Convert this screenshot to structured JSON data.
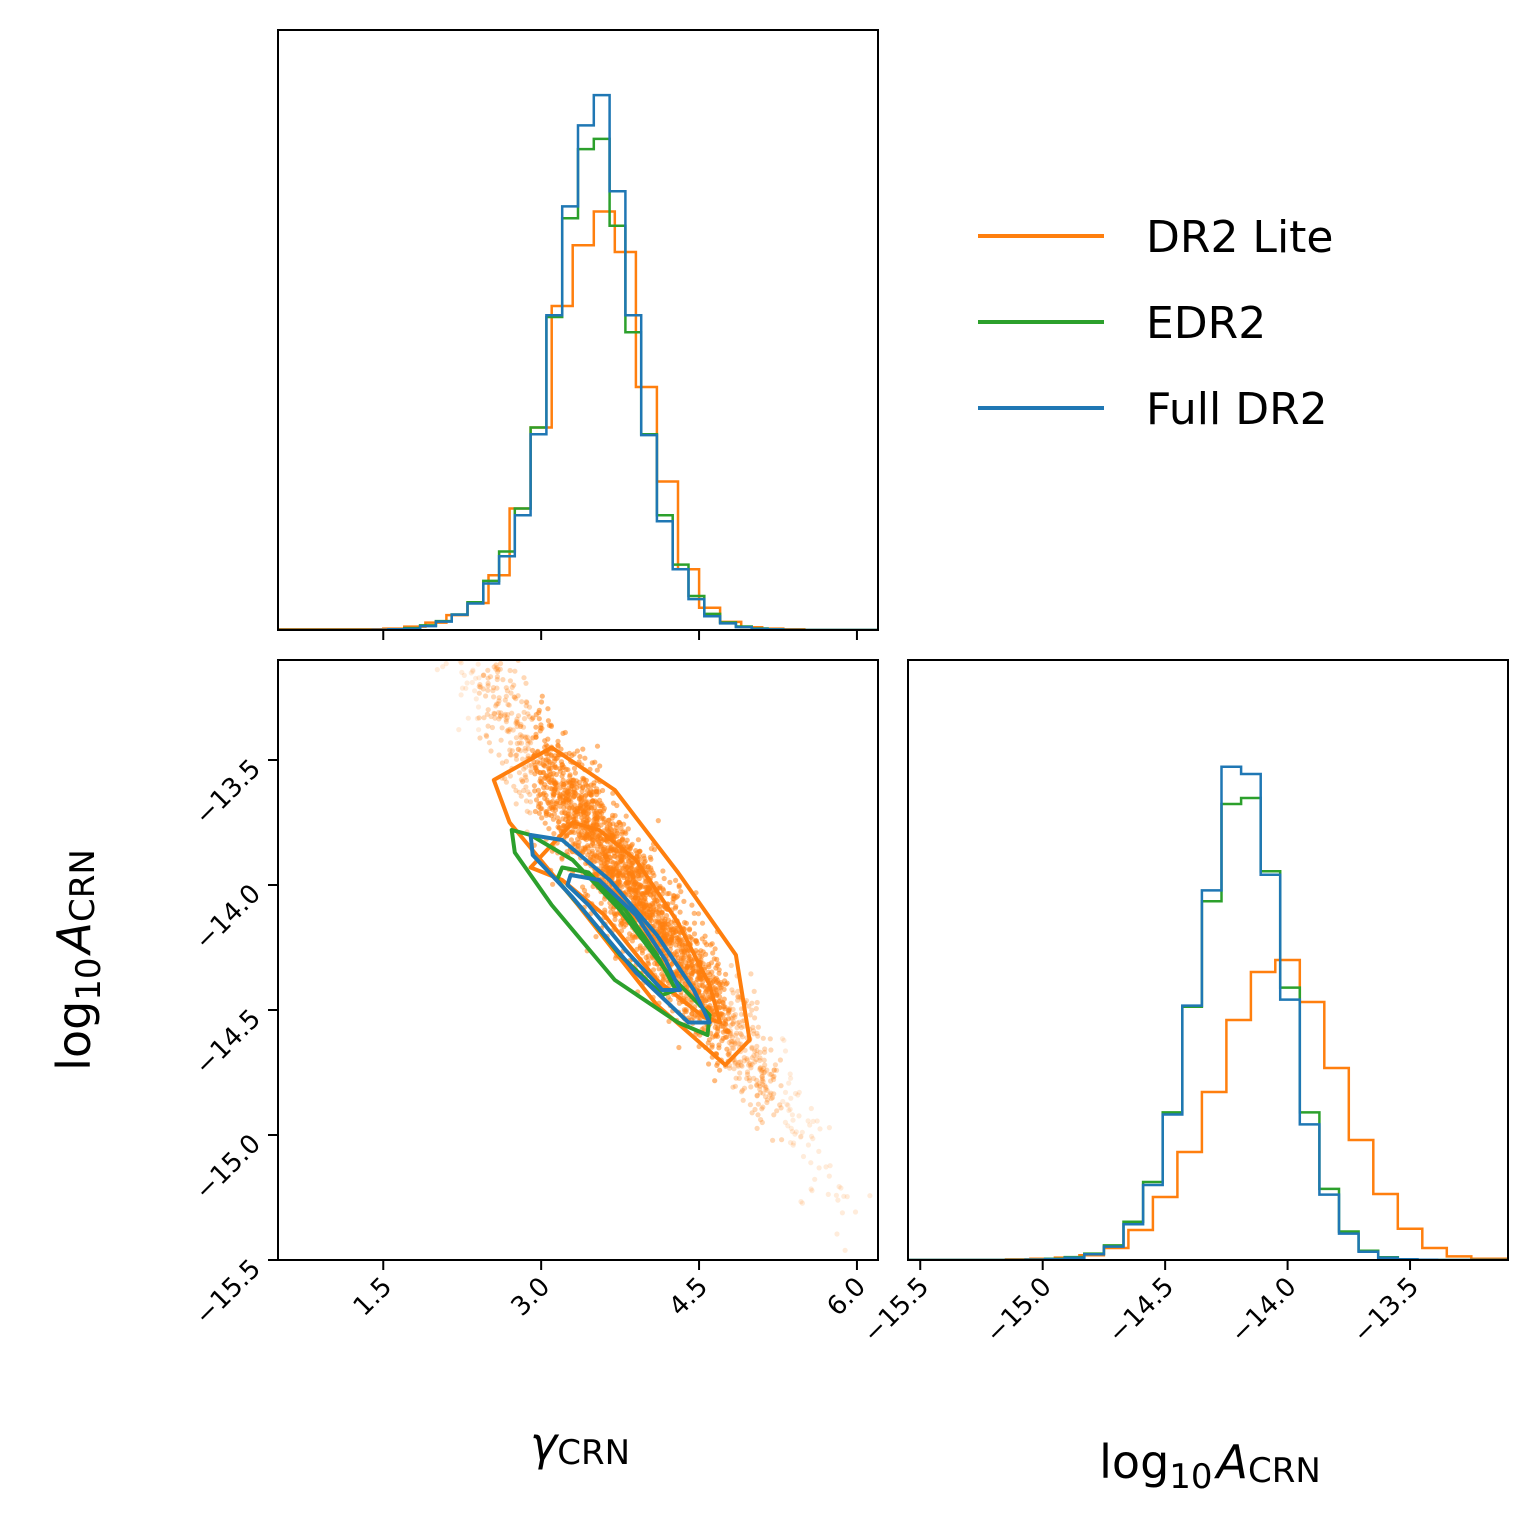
{
  "colors": {
    "dr2_lite": "#ff7f0e",
    "edr2": "#2ca02c",
    "full_dr2": "#1f77b4"
  },
  "legend": {
    "items": [
      {
        "label": "DR2 Lite",
        "color": "#ff7f0e"
      },
      {
        "label": "EDR2",
        "color": "#2ca02c"
      },
      {
        "label": "Full DR2",
        "color": "#1f77b4"
      }
    ]
  },
  "chart_data": [
    {
      "type": "histogram",
      "panel": "gamma-marginal",
      "xlim": [
        0.5,
        6.2
      ],
      "bins": [
        1.4,
        1.6,
        1.8,
        2.0,
        2.2,
        2.4,
        2.6,
        2.8,
        3.0,
        3.2,
        3.4,
        3.6,
        3.8,
        4.0,
        4.2,
        4.4,
        4.6,
        4.8,
        5.0,
        5.2,
        5.4,
        5.6,
        5.8,
        6.0
      ],
      "series": [
        {
          "name": "DR2 Lite",
          "color": "#ff7f0e",
          "bin_width": 0.2,
          "counts": [
            0.001,
            0.002,
            0.005,
            0.011,
            0.022,
            0.04,
            0.081,
            0.18,
            0.3,
            0.48,
            0.57,
            0.62,
            0.56,
            0.36,
            0.22,
            0.09,
            0.033,
            0.012,
            0.004,
            0.002,
            0.001,
            0.0,
            0.0,
            0.0
          ]
        },
        {
          "name": "EDR2",
          "color": "#2ca02c",
          "bin_width": 0.15,
          "counts": [
            0.0,
            0.001,
            0.003,
            0.009,
            0.02,
            0.044,
            0.09,
            0.16,
            0.32,
            0.55,
            0.71,
            0.73,
            0.52,
            0.31,
            0.15,
            0.065,
            0.026,
            0.009,
            0.003,
            0.001,
            0.0,
            0.0,
            0.0,
            0.0
          ]
        },
        {
          "name": "Full DR2",
          "color": "#1f77b4",
          "bin_width": 0.15,
          "counts": [
            0.0,
            0.001,
            0.002,
            0.008,
            0.02,
            0.042,
            0.085,
            0.15,
            0.31,
            0.56,
            0.74,
            0.8,
            0.56,
            0.31,
            0.14,
            0.06,
            0.022,
            0.008,
            0.002,
            0.001,
            0.0,
            0.0,
            0.0,
            0.0
          ]
        }
      ]
    },
    {
      "type": "scatter",
      "panel": "joint-2d",
      "xlim": [
        0.5,
        6.2
      ],
      "ylim": [
        -15.5,
        -13.1
      ],
      "xticks": [
        "1.5",
        "3.0",
        "4.5",
        "6.0"
      ],
      "yticks": [
        "−13.5",
        "−14.0",
        "−14.5",
        "−15.0",
        "−15.5"
      ],
      "xtick_values": [
        1.5,
        3.0,
        4.5,
        6.0
      ],
      "ytick_values": [
        -13.5,
        -14.0,
        -14.5,
        -15.0,
        -15.5
      ],
      "xlabel_main": "γ",
      "xlabel_sub": "CRN",
      "ylabel_main": "log",
      "ylabel_base": "10",
      "ylabel_var": "A",
      "ylabel_sub": "CRN",
      "scatter_series": {
        "name": "DR2 Lite",
        "color": "#ff7f0e",
        "mean": [
          3.85,
          -14.02
        ],
        "sd_x": 0.72,
        "slope": -0.58,
        "sd_resid": 0.12,
        "n_points": 2600
      },
      "contours": [
        {
          "name": "DR2 Lite",
          "color": "#ff7f0e",
          "polygons": [
            [
              [
                2.9,
                -13.93
              ],
              [
                3.3,
                -13.75
              ],
              [
                3.55,
                -13.78
              ],
              [
                3.9,
                -13.9
              ],
              [
                4.3,
                -14.15
              ],
              [
                4.6,
                -14.4
              ],
              [
                4.7,
                -14.55
              ],
              [
                4.55,
                -14.53
              ],
              [
                4.1,
                -14.38
              ],
              [
                3.6,
                -14.12
              ],
              [
                3.2,
                -13.98
              ]
            ],
            [
              [
                2.55,
                -13.58
              ],
              [
                3.1,
                -13.45
              ],
              [
                3.7,
                -13.62
              ],
              [
                4.3,
                -13.95
              ],
              [
                4.85,
                -14.28
              ],
              [
                4.98,
                -14.62
              ],
              [
                4.75,
                -14.72
              ],
              [
                4.1,
                -14.48
              ],
              [
                3.35,
                -14.08
              ],
              [
                2.7,
                -13.75
              ]
            ]
          ]
        },
        {
          "name": "EDR2",
          "color": "#2ca02c",
          "polygons": [
            [
              [
                3.2,
                -13.93
              ],
              [
                3.45,
                -13.95
              ],
              [
                3.8,
                -14.1
              ],
              [
                4.1,
                -14.28
              ],
              [
                4.28,
                -14.42
              ],
              [
                4.15,
                -14.44
              ],
              [
                3.75,
                -14.28
              ],
              [
                3.4,
                -14.1
              ],
              [
                3.15,
                -13.98
              ]
            ],
            [
              [
                2.72,
                -13.78
              ],
              [
                2.9,
                -13.8
              ],
              [
                3.3,
                -13.9
              ],
              [
                3.75,
                -14.1
              ],
              [
                4.2,
                -14.35
              ],
              [
                4.6,
                -14.52
              ],
              [
                4.58,
                -14.6
              ],
              [
                4.3,
                -14.55
              ],
              [
                3.7,
                -14.38
              ],
              [
                3.1,
                -14.08
              ],
              [
                2.75,
                -13.87
              ]
            ]
          ]
        },
        {
          "name": "Full DR2",
          "color": "#1f77b4",
          "polygons": [
            [
              [
                3.28,
                -13.96
              ],
              [
                3.55,
                -13.98
              ],
              [
                3.9,
                -14.12
              ],
              [
                4.18,
                -14.3
              ],
              [
                4.32,
                -14.42
              ],
              [
                4.15,
                -14.42
              ],
              [
                3.8,
                -14.26
              ],
              [
                3.45,
                -14.08
              ],
              [
                3.25,
                -14.0
              ]
            ],
            [
              [
                2.9,
                -13.8
              ],
              [
                3.2,
                -13.82
              ],
              [
                3.65,
                -13.98
              ],
              [
                4.1,
                -14.2
              ],
              [
                4.45,
                -14.42
              ],
              [
                4.6,
                -14.55
              ],
              [
                4.4,
                -14.55
              ],
              [
                3.9,
                -14.35
              ],
              [
                3.3,
                -14.05
              ],
              [
                2.92,
                -13.88
              ]
            ]
          ]
        }
      ]
    },
    {
      "type": "histogram",
      "panel": "logA-marginal",
      "xlim": [
        -15.55,
        -13.1
      ],
      "xticks": [
        "−15.5",
        "−15.0",
        "−14.5",
        "−14.0",
        "−13.5"
      ],
      "xtick_values": [
        -15.5,
        -15.0,
        -14.5,
        -14.0,
        -13.5
      ],
      "xlabel_main": "log",
      "xlabel_base": "10",
      "xlabel_var": "A",
      "xlabel_sub": "CRN",
      "bins": [
        -15.4,
        -15.3,
        -15.2,
        -15.1,
        -15.0,
        -14.9,
        -14.8,
        -14.7,
        -14.6,
        -14.5,
        -14.4,
        -14.3,
        -14.2,
        -14.1,
        -14.0,
        -13.9,
        -13.8,
        -13.7,
        -13.6,
        -13.5,
        -13.4,
        -13.3,
        -13.2
      ],
      "series": [
        {
          "name": "DR2 Lite",
          "color": "#ff7f0e",
          "bin_width": 0.1,
          "counts": [
            0.0,
            0.0,
            0.0,
            0.001,
            0.002,
            0.004,
            0.008,
            0.02,
            0.05,
            0.105,
            0.18,
            0.28,
            0.4,
            0.48,
            0.5,
            0.43,
            0.32,
            0.2,
            0.11,
            0.052,
            0.02,
            0.006,
            0.002
          ]
        },
        {
          "name": "EDR2",
          "color": "#2ca02c",
          "bin_width": 0.08,
          "counts": [
            0.0,
            0.0,
            0.0,
            0.0,
            0.001,
            0.003,
            0.009,
            0.026,
            0.08,
            0.18,
            0.4,
            0.62,
            0.82,
            0.72,
            0.48,
            0.22,
            0.075,
            0.02,
            0.005,
            0.001,
            0.0,
            0.0,
            0.0
          ]
        },
        {
          "name": "Full DR2",
          "color": "#1f77b4",
          "bin_width": 0.08,
          "counts": [
            0.0,
            0.0,
            0.0,
            0.0,
            0.001,
            0.002,
            0.008,
            0.024,
            0.075,
            0.175,
            0.4,
            0.64,
            0.9,
            0.72,
            0.46,
            0.2,
            0.07,
            0.018,
            0.004,
            0.001,
            0.0,
            0.0,
            0.0
          ]
        }
      ]
    }
  ]
}
